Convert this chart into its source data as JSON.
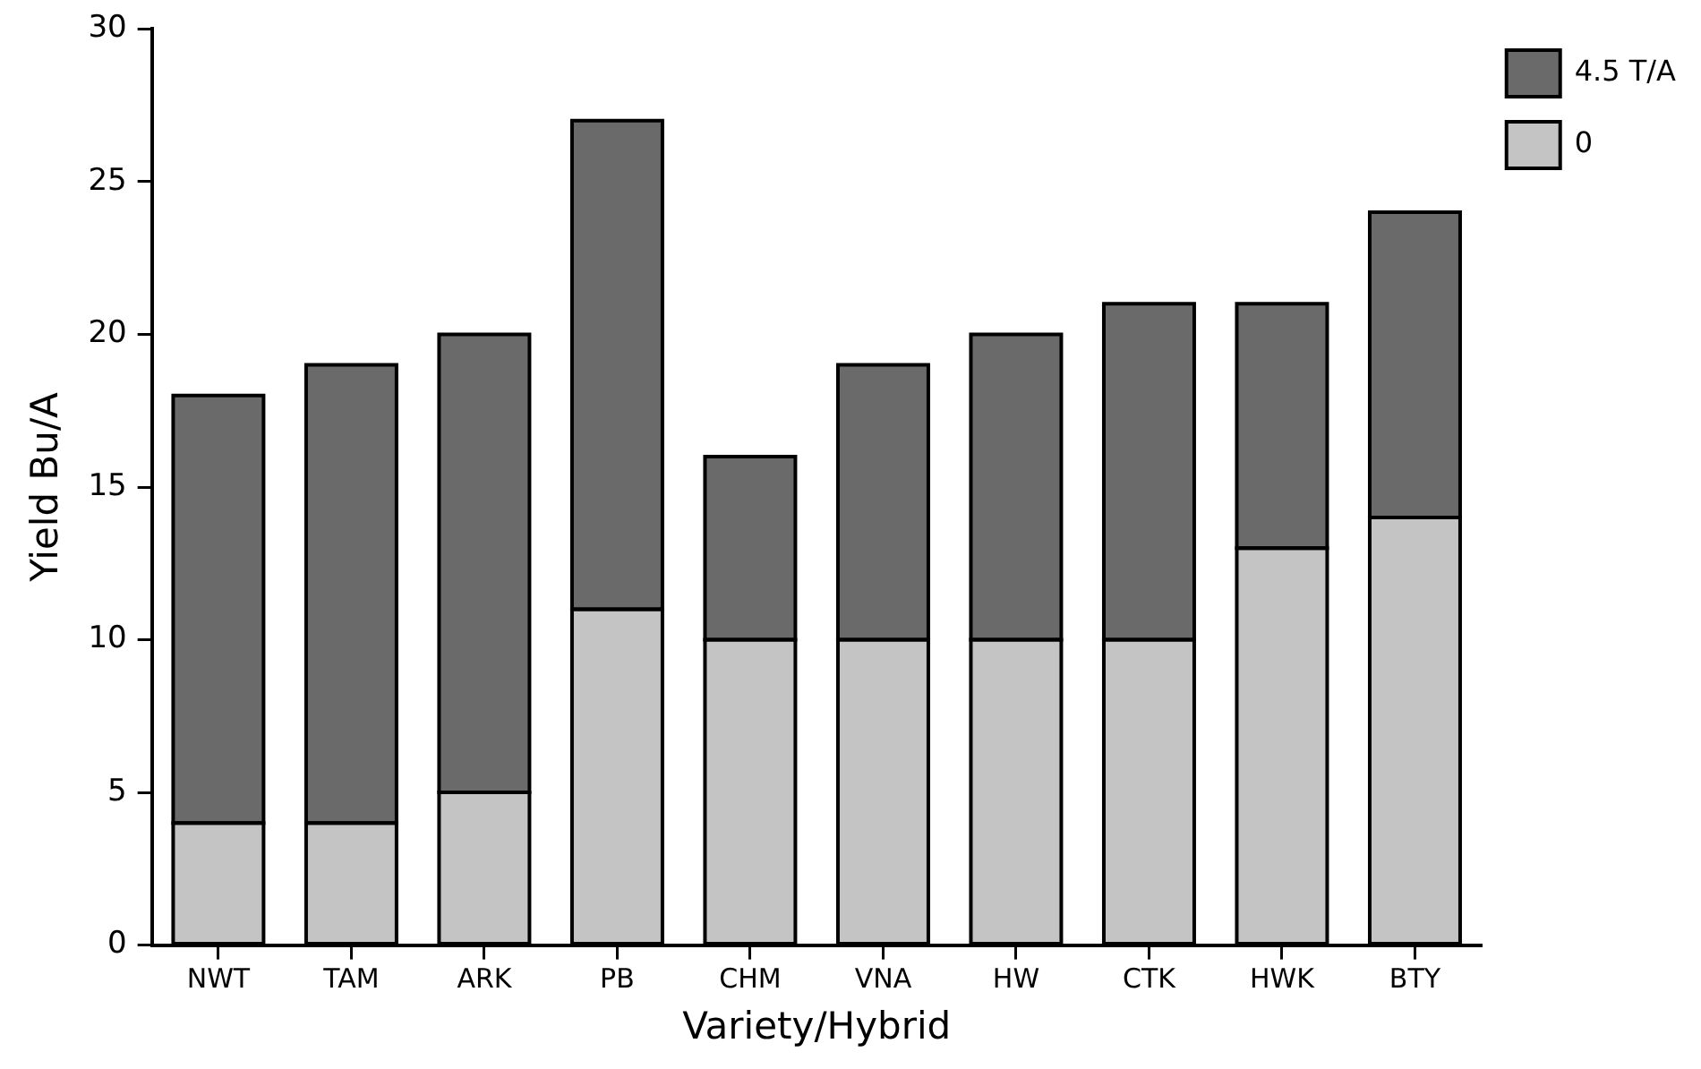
{
  "chart_data": {
    "type": "bar",
    "stacked": true,
    "xlabel": "Variety/Hybrid",
    "ylabel": "Yield Bu/A",
    "categories": [
      "NWT",
      "TAM",
      "ARK",
      "PB",
      "CHM",
      "VNA",
      "HW",
      "CTK",
      "HWK",
      "BTY"
    ],
    "series": [
      {
        "name": "0",
        "color": "#c4c4c4",
        "values": [
          4,
          4,
          5,
          11,
          10,
          10,
          10,
          10,
          13,
          14
        ]
      },
      {
        "name": "4.5 T/A",
        "color": "#6a6a6a",
        "values": [
          14,
          15,
          15,
          16,
          6,
          9,
          10,
          11,
          8,
          10
        ]
      }
    ],
    "ylim": [
      0,
      30
    ],
    "yticks": [
      0,
      5,
      10,
      15,
      20,
      25,
      30
    ],
    "grid": false,
    "legend": "top right"
  }
}
